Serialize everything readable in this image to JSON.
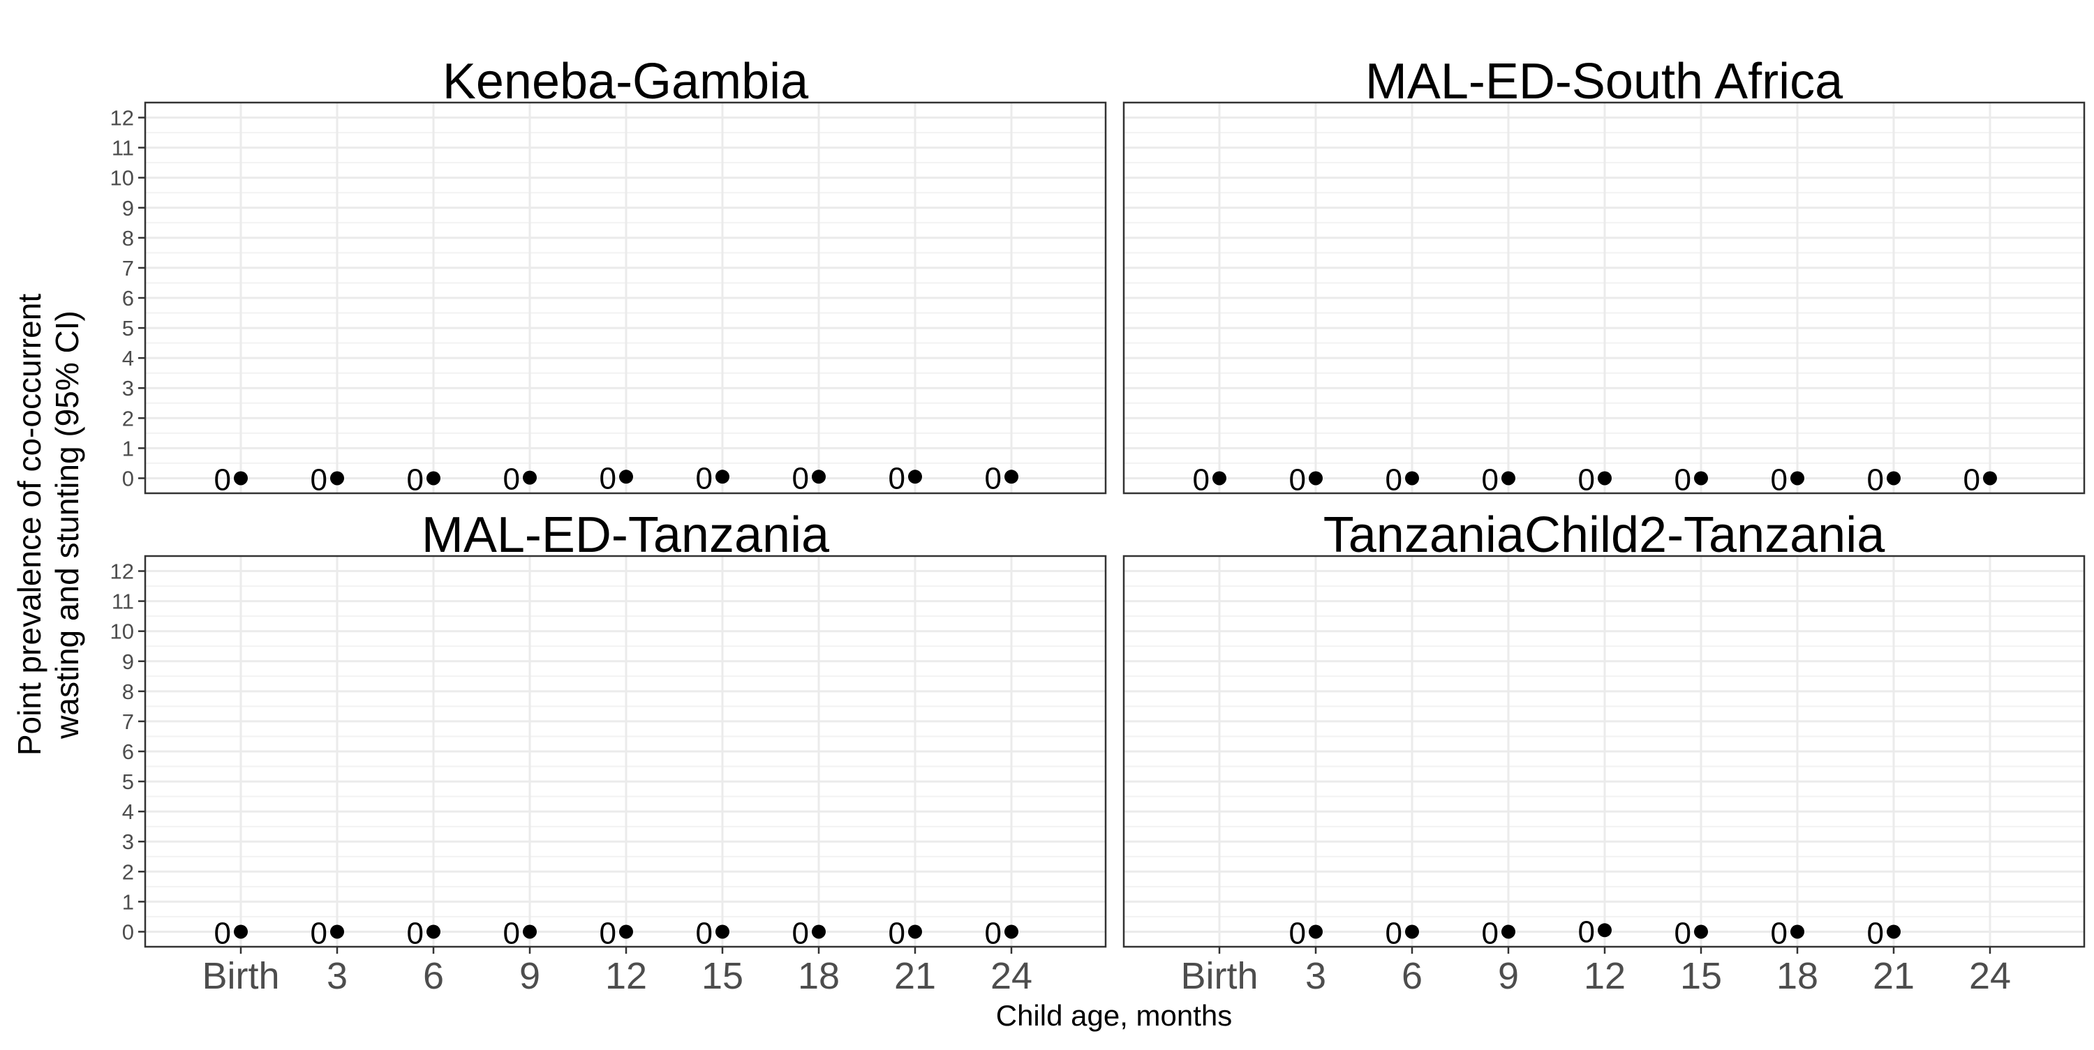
{
  "chart_data": {
    "type": "scatter",
    "layout": "2x2 facet grid, shared axes",
    "y_label_lines": [
      "Point prevalence of co-occurrent",
      "wasting and stunting (95% CI)"
    ],
    "x_label": "Child age, months",
    "x_categories": [
      "Birth",
      "3",
      "6",
      "9",
      "12",
      "15",
      "18",
      "21",
      "24"
    ],
    "y_ticks": [
      0,
      1,
      2,
      3,
      4,
      5,
      6,
      7,
      8,
      9,
      10,
      11,
      12
    ],
    "ylim": [
      -0.5,
      12.5
    ],
    "grid": true,
    "point_color": "#000000",
    "point_label_color": "#000000",
    "panels": [
      {
        "title": "Keneba-Gambia",
        "points": [
          {
            "x": "Birth",
            "y": 0,
            "label": "0"
          },
          {
            "x": "3",
            "y": 0,
            "label": "0"
          },
          {
            "x": "6",
            "y": 0,
            "label": "0"
          },
          {
            "x": "9",
            "y": 0.02,
            "label": "0"
          },
          {
            "x": "12",
            "y": 0.05,
            "label": "0"
          },
          {
            "x": "15",
            "y": 0.05,
            "label": "0"
          },
          {
            "x": "18",
            "y": 0.05,
            "label": "0"
          },
          {
            "x": "21",
            "y": 0.05,
            "label": "0"
          },
          {
            "x": "24",
            "y": 0.05,
            "label": "0"
          }
        ]
      },
      {
        "title": "MAL-ED-South Africa",
        "points": [
          {
            "x": "Birth",
            "y": 0,
            "label": "0"
          },
          {
            "x": "3",
            "y": 0,
            "label": "0"
          },
          {
            "x": "6",
            "y": 0,
            "label": "0"
          },
          {
            "x": "9",
            "y": 0,
            "label": "0"
          },
          {
            "x": "12",
            "y": 0,
            "label": "0"
          },
          {
            "x": "15",
            "y": 0,
            "label": "0"
          },
          {
            "x": "18",
            "y": 0,
            "label": "0"
          },
          {
            "x": "21",
            "y": 0,
            "label": "0"
          },
          {
            "x": "24",
            "y": 0,
            "label": "0"
          }
        ]
      },
      {
        "title": "MAL-ED-Tanzania",
        "points": [
          {
            "x": "Birth",
            "y": 0,
            "label": "0"
          },
          {
            "x": "3",
            "y": 0,
            "label": "0"
          },
          {
            "x": "6",
            "y": 0,
            "label": "0"
          },
          {
            "x": "9",
            "y": 0,
            "label": "0"
          },
          {
            "x": "12",
            "y": 0,
            "label": "0"
          },
          {
            "x": "15",
            "y": 0,
            "label": "0"
          },
          {
            "x": "18",
            "y": 0,
            "label": "0"
          },
          {
            "x": "21",
            "y": 0,
            "label": "0"
          },
          {
            "x": "24",
            "y": 0,
            "label": "0"
          }
        ]
      },
      {
        "title": "TanzaniaChild2-Tanzania",
        "points": [
          {
            "x": "3",
            "y": 0,
            "label": "0"
          },
          {
            "x": "6",
            "y": 0,
            "label": "0"
          },
          {
            "x": "9",
            "y": 0,
            "label": "0"
          },
          {
            "x": "12",
            "y": 0.05,
            "label": "0"
          },
          {
            "x": "15",
            "y": 0,
            "label": "0"
          },
          {
            "x": "18",
            "y": 0,
            "label": "0"
          },
          {
            "x": "21",
            "y": 0,
            "label": "0"
          }
        ]
      }
    ]
  }
}
